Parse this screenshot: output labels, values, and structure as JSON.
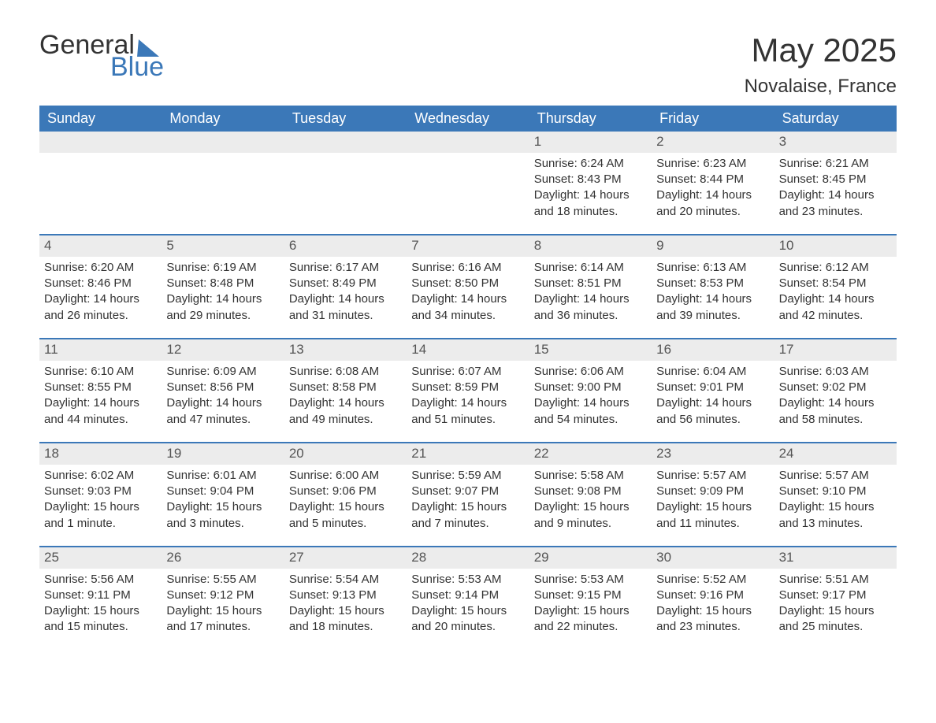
{
  "logo": {
    "word1": "General",
    "word2": "Blue"
  },
  "title": {
    "month": "May 2025",
    "location": "Novalaise, France"
  },
  "colors": {
    "header_bg": "#3b78b8",
    "header_text": "#ffffff",
    "daynum_bg": "#ececec",
    "text": "#333333",
    "rule": "#3b78b8"
  },
  "day_names": [
    "Sunday",
    "Monday",
    "Tuesday",
    "Wednesday",
    "Thursday",
    "Friday",
    "Saturday"
  ],
  "weeks": [
    [
      {
        "empty": true
      },
      {
        "empty": true
      },
      {
        "empty": true
      },
      {
        "empty": true
      },
      {
        "n": "1",
        "sr": "Sunrise: 6:24 AM",
        "ss": "Sunset: 8:43 PM",
        "d1": "Daylight: 14 hours",
        "d2": "and 18 minutes."
      },
      {
        "n": "2",
        "sr": "Sunrise: 6:23 AM",
        "ss": "Sunset: 8:44 PM",
        "d1": "Daylight: 14 hours",
        "d2": "and 20 minutes."
      },
      {
        "n": "3",
        "sr": "Sunrise: 6:21 AM",
        "ss": "Sunset: 8:45 PM",
        "d1": "Daylight: 14 hours",
        "d2": "and 23 minutes."
      }
    ],
    [
      {
        "n": "4",
        "sr": "Sunrise: 6:20 AM",
        "ss": "Sunset: 8:46 PM",
        "d1": "Daylight: 14 hours",
        "d2": "and 26 minutes."
      },
      {
        "n": "5",
        "sr": "Sunrise: 6:19 AM",
        "ss": "Sunset: 8:48 PM",
        "d1": "Daylight: 14 hours",
        "d2": "and 29 minutes."
      },
      {
        "n": "6",
        "sr": "Sunrise: 6:17 AM",
        "ss": "Sunset: 8:49 PM",
        "d1": "Daylight: 14 hours",
        "d2": "and 31 minutes."
      },
      {
        "n": "7",
        "sr": "Sunrise: 6:16 AM",
        "ss": "Sunset: 8:50 PM",
        "d1": "Daylight: 14 hours",
        "d2": "and 34 minutes."
      },
      {
        "n": "8",
        "sr": "Sunrise: 6:14 AM",
        "ss": "Sunset: 8:51 PM",
        "d1": "Daylight: 14 hours",
        "d2": "and 36 minutes."
      },
      {
        "n": "9",
        "sr": "Sunrise: 6:13 AM",
        "ss": "Sunset: 8:53 PM",
        "d1": "Daylight: 14 hours",
        "d2": "and 39 minutes."
      },
      {
        "n": "10",
        "sr": "Sunrise: 6:12 AM",
        "ss": "Sunset: 8:54 PM",
        "d1": "Daylight: 14 hours",
        "d2": "and 42 minutes."
      }
    ],
    [
      {
        "n": "11",
        "sr": "Sunrise: 6:10 AM",
        "ss": "Sunset: 8:55 PM",
        "d1": "Daylight: 14 hours",
        "d2": "and 44 minutes."
      },
      {
        "n": "12",
        "sr": "Sunrise: 6:09 AM",
        "ss": "Sunset: 8:56 PM",
        "d1": "Daylight: 14 hours",
        "d2": "and 47 minutes."
      },
      {
        "n": "13",
        "sr": "Sunrise: 6:08 AM",
        "ss": "Sunset: 8:58 PM",
        "d1": "Daylight: 14 hours",
        "d2": "and 49 minutes."
      },
      {
        "n": "14",
        "sr": "Sunrise: 6:07 AM",
        "ss": "Sunset: 8:59 PM",
        "d1": "Daylight: 14 hours",
        "d2": "and 51 minutes."
      },
      {
        "n": "15",
        "sr": "Sunrise: 6:06 AM",
        "ss": "Sunset: 9:00 PM",
        "d1": "Daylight: 14 hours",
        "d2": "and 54 minutes."
      },
      {
        "n": "16",
        "sr": "Sunrise: 6:04 AM",
        "ss": "Sunset: 9:01 PM",
        "d1": "Daylight: 14 hours",
        "d2": "and 56 minutes."
      },
      {
        "n": "17",
        "sr": "Sunrise: 6:03 AM",
        "ss": "Sunset: 9:02 PM",
        "d1": "Daylight: 14 hours",
        "d2": "and 58 minutes."
      }
    ],
    [
      {
        "n": "18",
        "sr": "Sunrise: 6:02 AM",
        "ss": "Sunset: 9:03 PM",
        "d1": "Daylight: 15 hours",
        "d2": "and 1 minute."
      },
      {
        "n": "19",
        "sr": "Sunrise: 6:01 AM",
        "ss": "Sunset: 9:04 PM",
        "d1": "Daylight: 15 hours",
        "d2": "and 3 minutes."
      },
      {
        "n": "20",
        "sr": "Sunrise: 6:00 AM",
        "ss": "Sunset: 9:06 PM",
        "d1": "Daylight: 15 hours",
        "d2": "and 5 minutes."
      },
      {
        "n": "21",
        "sr": "Sunrise: 5:59 AM",
        "ss": "Sunset: 9:07 PM",
        "d1": "Daylight: 15 hours",
        "d2": "and 7 minutes."
      },
      {
        "n": "22",
        "sr": "Sunrise: 5:58 AM",
        "ss": "Sunset: 9:08 PM",
        "d1": "Daylight: 15 hours",
        "d2": "and 9 minutes."
      },
      {
        "n": "23",
        "sr": "Sunrise: 5:57 AM",
        "ss": "Sunset: 9:09 PM",
        "d1": "Daylight: 15 hours",
        "d2": "and 11 minutes."
      },
      {
        "n": "24",
        "sr": "Sunrise: 5:57 AM",
        "ss": "Sunset: 9:10 PM",
        "d1": "Daylight: 15 hours",
        "d2": "and 13 minutes."
      }
    ],
    [
      {
        "n": "25",
        "sr": "Sunrise: 5:56 AM",
        "ss": "Sunset: 9:11 PM",
        "d1": "Daylight: 15 hours",
        "d2": "and 15 minutes."
      },
      {
        "n": "26",
        "sr": "Sunrise: 5:55 AM",
        "ss": "Sunset: 9:12 PM",
        "d1": "Daylight: 15 hours",
        "d2": "and 17 minutes."
      },
      {
        "n": "27",
        "sr": "Sunrise: 5:54 AM",
        "ss": "Sunset: 9:13 PM",
        "d1": "Daylight: 15 hours",
        "d2": "and 18 minutes."
      },
      {
        "n": "28",
        "sr": "Sunrise: 5:53 AM",
        "ss": "Sunset: 9:14 PM",
        "d1": "Daylight: 15 hours",
        "d2": "and 20 minutes."
      },
      {
        "n": "29",
        "sr": "Sunrise: 5:53 AM",
        "ss": "Sunset: 9:15 PM",
        "d1": "Daylight: 15 hours",
        "d2": "and 22 minutes."
      },
      {
        "n": "30",
        "sr": "Sunrise: 5:52 AM",
        "ss": "Sunset: 9:16 PM",
        "d1": "Daylight: 15 hours",
        "d2": "and 23 minutes."
      },
      {
        "n": "31",
        "sr": "Sunrise: 5:51 AM",
        "ss": "Sunset: 9:17 PM",
        "d1": "Daylight: 15 hours",
        "d2": "and 25 minutes."
      }
    ]
  ]
}
